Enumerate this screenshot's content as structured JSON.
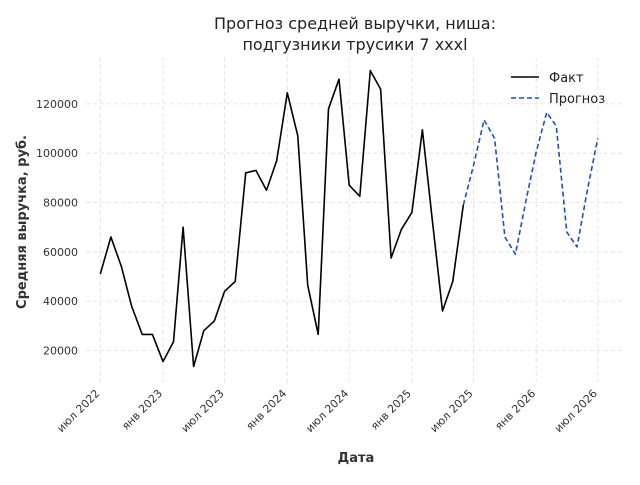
{
  "chart_data": {
    "type": "line",
    "title": [
      "Прогноз средней выручки, ниша:",
      "подгузники трусики 7 xxxl"
    ],
    "xlabel": "Дата",
    "ylabel": "Средняя выручка, руб.",
    "x_ticks": [
      {
        "date": "2022-07-01",
        "label": "июл 2022"
      },
      {
        "date": "2023-01-01",
        "label": "янв 2023"
      },
      {
        "date": "2023-07-01",
        "label": "июл 2023"
      },
      {
        "date": "2024-01-01",
        "label": "янв 2024"
      },
      {
        "date": "2024-07-01",
        "label": "июл 2024"
      },
      {
        "date": "2025-01-01",
        "label": "янв 2025"
      },
      {
        "date": "2025-07-01",
        "label": "июл 2025"
      },
      {
        "date": "2026-01-01",
        "label": "янв 2026"
      },
      {
        "date": "2026-07-01",
        "label": "июл 2026"
      }
    ],
    "y_ticks": [
      20000,
      40000,
      60000,
      80000,
      100000,
      120000
    ],
    "xlim": [
      "2022-05-20",
      "2026-09-10"
    ],
    "ylim": [
      6000,
      139000
    ],
    "grid": true,
    "legend_position": "top-right",
    "series": [
      {
        "name": "Факт",
        "color": "#000000",
        "dash": "solid",
        "x": [
          "2022-07-01",
          "2022-08-01",
          "2022-09-01",
          "2022-10-01",
          "2022-11-01",
          "2022-12-01",
          "2023-01-01",
          "2023-02-01",
          "2023-03-01",
          "2023-04-01",
          "2023-05-01",
          "2023-06-01",
          "2023-07-01",
          "2023-08-01",
          "2023-09-01",
          "2023-10-01",
          "2023-11-01",
          "2023-12-01",
          "2024-01-01",
          "2024-02-01",
          "2024-03-01",
          "2024-04-01",
          "2024-05-01",
          "2024-06-01",
          "2024-07-01",
          "2024-08-01",
          "2024-09-01",
          "2024-10-01",
          "2024-11-01",
          "2024-12-01",
          "2025-01-01",
          "2025-02-01",
          "2025-03-01",
          "2025-04-01",
          "2025-05-01",
          "2025-06-01"
        ],
        "values": [
          51000,
          66000,
          54000,
          38000,
          26500,
          26500,
          15500,
          23500,
          70000,
          13500,
          28000,
          32000,
          44000,
          48000,
          92000,
          93000,
          85000,
          97000,
          124500,
          107000,
          46500,
          26500,
          118000,
          130000,
          87000,
          82500,
          133500,
          126000,
          57500,
          69000,
          76000,
          109500,
          74000,
          36000,
          48000,
          79000
        ]
      },
      {
        "name": "Прогноз",
        "color": "#1f4fc6",
        "dash": "dashed",
        "x": [
          "2025-06-01",
          "2025-07-01",
          "2025-08-01",
          "2025-09-01",
          "2025-10-01",
          "2025-11-01",
          "2025-12-01",
          "2026-01-01",
          "2026-02-01",
          "2026-03-01",
          "2026-04-01",
          "2026-05-01",
          "2026-06-01",
          "2026-07-01"
        ],
        "values": [
          79000,
          95000,
          113500,
          106000,
          66000,
          59000,
          80000,
          100500,
          116500,
          111000,
          68000,
          62000,
          85500,
          106000
        ]
      }
    ]
  }
}
